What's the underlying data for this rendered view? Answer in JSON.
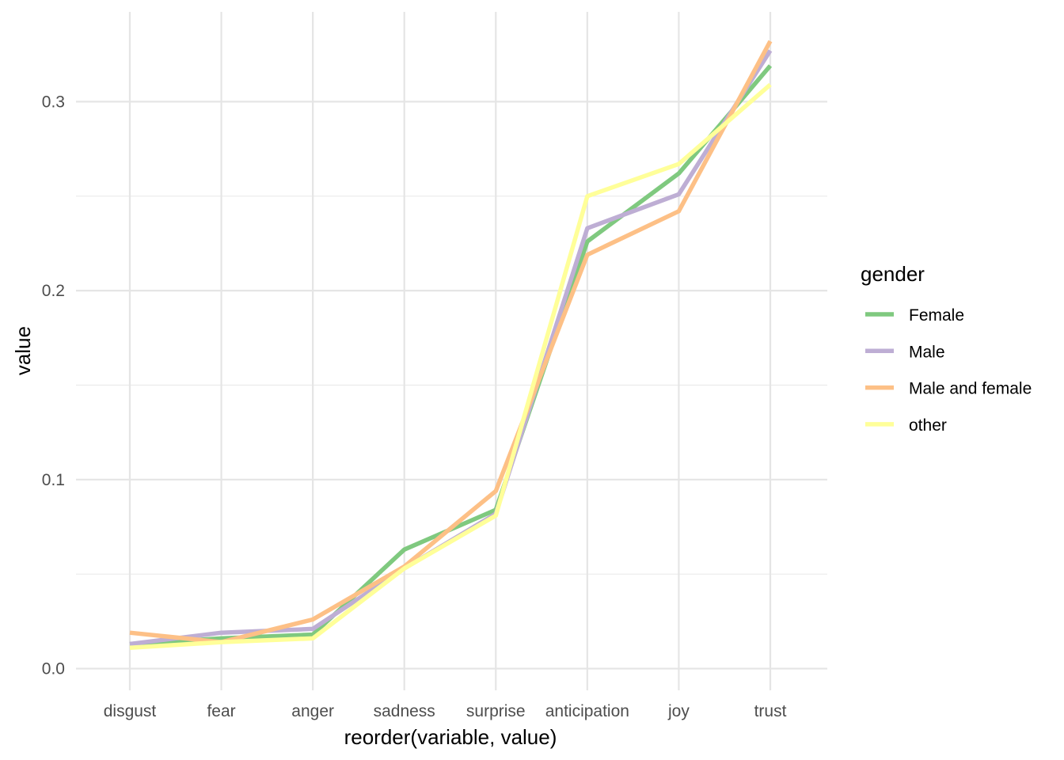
{
  "chart_data": {
    "type": "line",
    "xlabel": "reorder(variable, value)",
    "ylabel": "value",
    "categories": [
      "disgust",
      "fear",
      "anger",
      "sadness",
      "surprise",
      "anticipation",
      "joy",
      "trust"
    ],
    "ylim": [
      -0.0115,
      0.3475
    ],
    "yticks": [
      0.0,
      0.1,
      0.2,
      0.3
    ],
    "ytick_labels": [
      "0.0",
      "0.1",
      "0.2",
      "0.3"
    ],
    "grid": true,
    "legend": {
      "title": "gender",
      "position": "right"
    },
    "series": [
      {
        "name": "Female",
        "color": "#7fc97f",
        "values": [
          0.013,
          0.016,
          0.018,
          0.063,
          0.084,
          0.226,
          0.262,
          0.319
        ]
      },
      {
        "name": "Male",
        "color": "#beaed4",
        "values": [
          0.013,
          0.019,
          0.021,
          0.053,
          0.082,
          0.233,
          0.251,
          0.327
        ]
      },
      {
        "name": "Male and female",
        "color": "#fdc086",
        "values": [
          0.019,
          0.014,
          0.026,
          0.054,
          0.094,
          0.219,
          0.242,
          0.332
        ]
      },
      {
        "name": "other",
        "color": "#ffff99",
        "values": [
          0.011,
          0.014,
          0.016,
          0.053,
          0.081,
          0.25,
          0.267,
          0.309
        ]
      }
    ]
  }
}
